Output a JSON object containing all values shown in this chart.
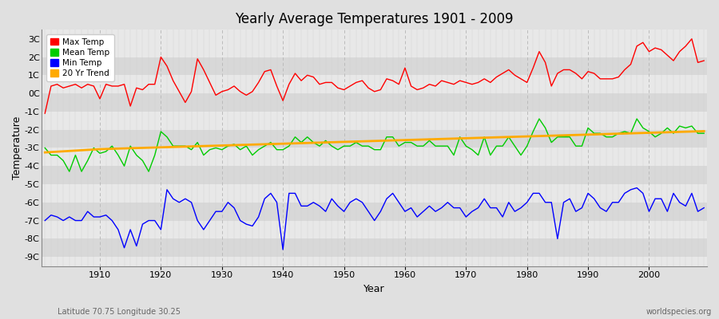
{
  "title": "Yearly Average Temperatures 1901 - 2009",
  "xlabel": "Year",
  "ylabel": "Temperature",
  "x_label_bottom": "Latitude 70.75 Longitude 30.25",
  "x_label_right": "worldspecies.org",
  "legend_labels": [
    "Max Temp",
    "Mean Temp",
    "Min Temp",
    "20 Yr Trend"
  ],
  "legend_colors": [
    "#ff0000",
    "#00cc00",
    "#0000ff",
    "#ffaa00"
  ],
  "ylim": [
    -9.5,
    3.5
  ],
  "yticks": [
    -9,
    -8,
    -7,
    -6,
    -5,
    -4,
    -3,
    -2,
    -1,
    0,
    1,
    2,
    3
  ],
  "ytick_labels": [
    "-9C",
    "-8C",
    "-7C",
    "-6C",
    "-5C",
    "-4C",
    "-3C",
    "-2C",
    "-1C",
    "0C",
    "1C",
    "2C",
    "3C"
  ],
  "years": [
    1901,
    1902,
    1903,
    1904,
    1905,
    1906,
    1907,
    1908,
    1909,
    1910,
    1911,
    1912,
    1913,
    1914,
    1915,
    1916,
    1917,
    1918,
    1919,
    1920,
    1921,
    1922,
    1923,
    1924,
    1925,
    1926,
    1927,
    1928,
    1929,
    1930,
    1931,
    1932,
    1933,
    1934,
    1935,
    1936,
    1937,
    1938,
    1939,
    1940,
    1941,
    1942,
    1943,
    1944,
    1945,
    1946,
    1947,
    1948,
    1949,
    1950,
    1951,
    1952,
    1953,
    1954,
    1955,
    1956,
    1957,
    1958,
    1959,
    1960,
    1961,
    1962,
    1963,
    1964,
    1965,
    1966,
    1967,
    1968,
    1969,
    1970,
    1971,
    1972,
    1973,
    1974,
    1975,
    1976,
    1977,
    1978,
    1979,
    1980,
    1981,
    1982,
    1983,
    1984,
    1985,
    1986,
    1987,
    1988,
    1989,
    1990,
    1991,
    1992,
    1993,
    1994,
    1995,
    1996,
    1997,
    1998,
    1999,
    2000,
    2001,
    2002,
    2003,
    2004,
    2005,
    2006,
    2007,
    2008,
    2009
  ],
  "max_temp": [
    -1.1,
    0.4,
    0.5,
    0.3,
    0.4,
    0.5,
    0.3,
    0.5,
    0.4,
    -0.3,
    0.5,
    0.4,
    0.4,
    0.5,
    -0.7,
    0.3,
    0.2,
    0.5,
    0.5,
    2.0,
    1.5,
    0.7,
    0.1,
    -0.5,
    0.1,
    1.9,
    1.3,
    0.6,
    -0.1,
    0.1,
    0.2,
    0.4,
    0.1,
    -0.1,
    0.1,
    0.6,
    1.2,
    1.3,
    0.4,
    -0.4,
    0.5,
    1.1,
    0.7,
    1.0,
    0.9,
    0.5,
    0.6,
    0.6,
    0.3,
    0.2,
    0.4,
    0.6,
    0.7,
    0.3,
    0.1,
    0.2,
    0.8,
    0.7,
    0.5,
    1.4,
    0.4,
    0.2,
    0.3,
    0.5,
    0.4,
    0.7,
    0.6,
    0.5,
    0.7,
    0.6,
    0.5,
    0.6,
    0.8,
    0.6,
    0.9,
    1.1,
    1.3,
    1.0,
    0.8,
    0.6,
    1.4,
    2.3,
    1.7,
    0.4,
    1.1,
    1.3,
    1.3,
    1.1,
    0.8,
    1.2,
    1.1,
    0.8,
    0.8,
    0.8,
    0.9,
    1.3,
    1.6,
    2.6,
    2.8,
    2.3,
    2.5,
    2.4,
    2.1,
    1.8,
    2.3,
    2.6,
    3.0,
    1.7,
    1.8
  ],
  "mean_temp": [
    -3.0,
    -3.4,
    -3.4,
    -3.7,
    -4.3,
    -3.4,
    -4.3,
    -3.7,
    -3.0,
    -3.3,
    -3.2,
    -2.9,
    -3.4,
    -4.0,
    -2.9,
    -3.4,
    -3.7,
    -4.3,
    -3.4,
    -2.1,
    -2.4,
    -2.9,
    -2.9,
    -2.9,
    -3.1,
    -2.7,
    -3.4,
    -3.1,
    -3.0,
    -3.1,
    -2.9,
    -2.8,
    -3.1,
    -2.9,
    -3.4,
    -3.1,
    -2.9,
    -2.7,
    -3.1,
    -3.1,
    -2.9,
    -2.4,
    -2.7,
    -2.4,
    -2.7,
    -2.9,
    -2.6,
    -2.9,
    -3.1,
    -2.9,
    -2.9,
    -2.7,
    -2.9,
    -2.9,
    -3.1,
    -3.1,
    -2.4,
    -2.4,
    -2.9,
    -2.7,
    -2.7,
    -2.9,
    -2.9,
    -2.6,
    -2.9,
    -2.9,
    -2.9,
    -3.4,
    -2.4,
    -2.9,
    -3.1,
    -3.4,
    -2.4,
    -3.4,
    -2.9,
    -2.9,
    -2.4,
    -2.9,
    -3.4,
    -2.9,
    -2.1,
    -1.4,
    -1.9,
    -2.7,
    -2.4,
    -2.4,
    -2.4,
    -2.9,
    -2.9,
    -1.9,
    -2.2,
    -2.2,
    -2.4,
    -2.4,
    -2.2,
    -2.1,
    -2.2,
    -1.4,
    -1.9,
    -2.1,
    -2.4,
    -2.2,
    -1.9,
    -2.2,
    -1.8,
    -1.9,
    -1.8,
    -2.2,
    -2.2
  ],
  "min_temp": [
    -7.0,
    -6.7,
    -6.8,
    -7.0,
    -6.8,
    -7.0,
    -7.0,
    -6.5,
    -6.8,
    -6.8,
    -6.7,
    -7.0,
    -7.5,
    -8.5,
    -7.5,
    -8.4,
    -7.2,
    -7.0,
    -7.0,
    -7.5,
    -5.3,
    -5.8,
    -6.0,
    -5.8,
    -6.0,
    -7.0,
    -7.5,
    -7.0,
    -6.5,
    -6.5,
    -6.0,
    -6.3,
    -7.0,
    -7.2,
    -7.3,
    -6.8,
    -5.8,
    -5.5,
    -6.0,
    -8.6,
    -5.5,
    -5.5,
    -6.2,
    -6.2,
    -6.0,
    -6.2,
    -6.5,
    -5.8,
    -6.2,
    -6.5,
    -6.0,
    -5.8,
    -6.0,
    -6.5,
    -7.0,
    -6.5,
    -5.8,
    -5.5,
    -6.0,
    -6.5,
    -6.3,
    -6.8,
    -6.5,
    -6.2,
    -6.5,
    -6.3,
    -6.0,
    -6.3,
    -6.3,
    -6.8,
    -6.5,
    -6.3,
    -5.8,
    -6.3,
    -6.3,
    -6.8,
    -6.0,
    -6.5,
    -6.3,
    -6.0,
    -5.5,
    -5.5,
    -6.0,
    -6.0,
    -8.0,
    -6.0,
    -5.8,
    -6.5,
    -6.3,
    -5.5,
    -5.8,
    -6.3,
    -6.5,
    -6.0,
    -6.0,
    -5.5,
    -5.3,
    -5.2,
    -5.5,
    -6.5,
    -5.8,
    -5.8,
    -6.5,
    -5.5,
    -6.0,
    -6.2,
    -5.5,
    -6.5,
    -6.3
  ],
  "trend_20yr": [
    -3.25,
    -3.23,
    -3.21,
    -3.19,
    -3.17,
    -3.15,
    -3.13,
    -3.11,
    -3.09,
    -3.07,
    -3.06,
    -3.05,
    -3.04,
    -3.03,
    -3.02,
    -3.01,
    -3.0,
    -2.99,
    -2.98,
    -2.97,
    -2.96,
    -2.95,
    -2.94,
    -2.93,
    -2.92,
    -2.91,
    -2.9,
    -2.89,
    -2.88,
    -2.87,
    -2.86,
    -2.85,
    -2.84,
    -2.83,
    -2.82,
    -2.81,
    -2.8,
    -2.79,
    -2.78,
    -2.77,
    -2.76,
    -2.75,
    -2.74,
    -2.73,
    -2.72,
    -2.71,
    -2.7,
    -2.69,
    -2.68,
    -2.67,
    -2.66,
    -2.65,
    -2.64,
    -2.63,
    -2.62,
    -2.61,
    -2.6,
    -2.59,
    -2.58,
    -2.57,
    -2.56,
    -2.55,
    -2.54,
    -2.53,
    -2.52,
    -2.51,
    -2.5,
    -2.49,
    -2.48,
    -2.47,
    -2.46,
    -2.45,
    -2.44,
    -2.43,
    -2.42,
    -2.41,
    -2.4,
    -2.39,
    -2.38,
    -2.37,
    -2.36,
    -2.35,
    -2.34,
    -2.33,
    -2.32,
    -2.31,
    -2.3,
    -2.29,
    -2.28,
    -2.27,
    -2.26,
    -2.25,
    -2.24,
    -2.23,
    -2.22,
    -2.21,
    -2.2,
    -2.19,
    -2.18,
    -2.17,
    -2.16,
    -2.15,
    -2.14,
    -2.13,
    -2.12,
    -2.11,
    -2.1,
    -2.09,
    -2.08
  ],
  "bg_color": "#e0e0e0",
  "band_light": "#e8e8e8",
  "band_dark": "#d8d8d8",
  "grid_color": "#cccccc"
}
